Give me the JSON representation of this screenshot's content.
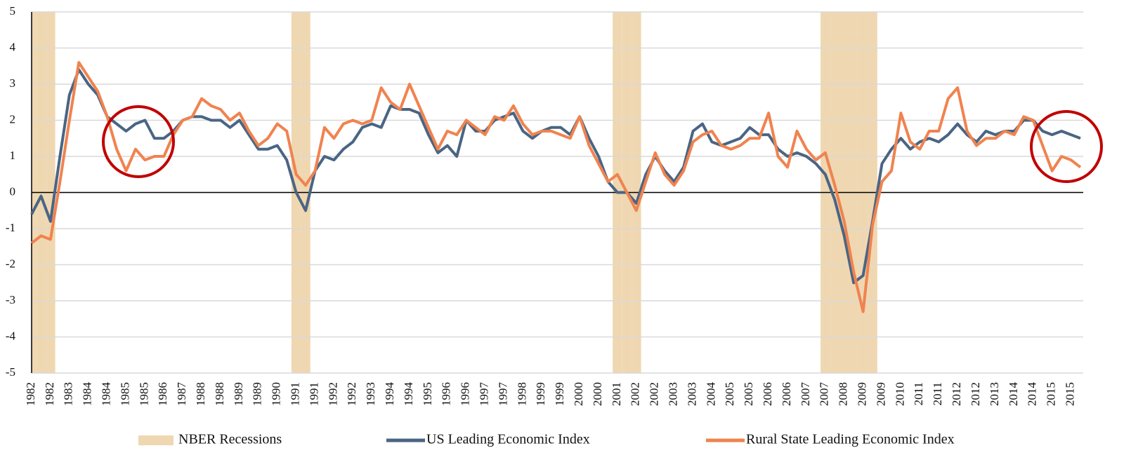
{
  "chart_data": {
    "type": "line",
    "categories": [
      "1982",
      null,
      "1982",
      null,
      "1983",
      null,
      "1984",
      null,
      "1984",
      null,
      "1985",
      null,
      "1985",
      null,
      "1986",
      null,
      "1987",
      null,
      "1988",
      null,
      "1988",
      null,
      "1989",
      null,
      "1989",
      null,
      "1990",
      null,
      "1991",
      null,
      "1991",
      null,
      "1992",
      null,
      "1992",
      null,
      "1993",
      null,
      "1994",
      null,
      "1994",
      null,
      "1995",
      null,
      "1996",
      null,
      "1996",
      null,
      "1997",
      null,
      "1997",
      null,
      "1998",
      null,
      "1999",
      null,
      "1999",
      null,
      "2000",
      null,
      "2000",
      null,
      "2001",
      null,
      "2002",
      null,
      "2002",
      null,
      "2003",
      null,
      "2003",
      null,
      "2004",
      null,
      "2005",
      null,
      "2005",
      null,
      "2006",
      null,
      "2006",
      null,
      "2007",
      null,
      "2007",
      null,
      "2008",
      null,
      "2009",
      null,
      "2009",
      null,
      "2010",
      null,
      "2011",
      null,
      "2011",
      null,
      "2012",
      null,
      "2012",
      null,
      "2013",
      null,
      "2014",
      null,
      "2014",
      null,
      "2015",
      null,
      "2015",
      null
    ],
    "series": [
      {
        "name": "NBER Recessions",
        "type": "bar",
        "color": "#efd7b1",
        "values": [
          1,
          1,
          1,
          0,
          0,
          0,
          0,
          0,
          0,
          0,
          0,
          0,
          0,
          0,
          0,
          0,
          0,
          0,
          0,
          0,
          0,
          0,
          0,
          0,
          0,
          0,
          0,
          0,
          1,
          1,
          0,
          0,
          0,
          0,
          0,
          0,
          0,
          0,
          0,
          0,
          0,
          0,
          0,
          0,
          0,
          0,
          0,
          0,
          0,
          0,
          0,
          0,
          0,
          0,
          0,
          0,
          0,
          0,
          0,
          0,
          0,
          0,
          1,
          1,
          1,
          0,
          0,
          0,
          0,
          0,
          0,
          0,
          0,
          0,
          0,
          0,
          0,
          0,
          0,
          0,
          0,
          0,
          0,
          0,
          1,
          1,
          1,
          1,
          1,
          1,
          0,
          0,
          0,
          0,
          0,
          0,
          0,
          0,
          0,
          0,
          0,
          0,
          0,
          0,
          0,
          0,
          0,
          0,
          0,
          0,
          0,
          0
        ]
      },
      {
        "name": "US Leading Economic Index",
        "type": "line",
        "color": "#4a6584",
        "values": [
          -0.6,
          -0.1,
          -0.8,
          1.0,
          2.7,
          3.4,
          3.0,
          2.7,
          2.1,
          1.9,
          1.7,
          1.9,
          2.0,
          1.5,
          1.5,
          1.7,
          2.0,
          2.1,
          2.1,
          2.0,
          2.0,
          1.8,
          2.0,
          1.6,
          1.2,
          1.2,
          1.3,
          0.9,
          0.0,
          -0.5,
          0.6,
          1.0,
          0.9,
          1.2,
          1.4,
          1.8,
          1.9,
          1.8,
          2.4,
          2.3,
          2.3,
          2.2,
          1.6,
          1.1,
          1.3,
          1.0,
          2.0,
          1.7,
          1.7,
          2.0,
          2.1,
          2.2,
          1.7,
          1.5,
          1.7,
          1.8,
          1.8,
          1.6,
          2.1,
          1.5,
          1.0,
          0.3,
          0.0,
          0.0,
          -0.3,
          0.5,
          1.0,
          0.6,
          0.3,
          0.7,
          1.7,
          1.9,
          1.4,
          1.3,
          1.4,
          1.5,
          1.8,
          1.6,
          1.6,
          1.2,
          1.0,
          1.1,
          1.0,
          0.8,
          0.5,
          -0.2,
          -1.2,
          -2.5,
          -2.3,
          -0.8,
          0.8,
          1.2,
          1.5,
          1.2,
          1.4,
          1.5,
          1.4,
          1.6,
          1.9,
          1.6,
          1.4,
          1.7,
          1.6,
          1.7,
          1.7,
          2.0,
          2.0,
          1.7,
          1.6,
          1.7,
          1.6,
          1.5
        ]
      },
      {
        "name": "Rural State Leading Economic Index",
        "type": "line",
        "color": "#f0834f",
        "values": [
          -1.4,
          -1.2,
          -1.3,
          0.3,
          2.0,
          3.6,
          3.2,
          2.8,
          2.1,
          1.2,
          0.6,
          1.2,
          0.9,
          1.0,
          1.0,
          1.6,
          2.0,
          2.1,
          2.6,
          2.4,
          2.3,
          2.0,
          2.2,
          1.7,
          1.3,
          1.5,
          1.9,
          1.7,
          0.5,
          0.2,
          0.6,
          1.8,
          1.5,
          1.9,
          2.0,
          1.9,
          2.0,
          2.9,
          2.5,
          2.3,
          3.0,
          2.4,
          1.8,
          1.2,
          1.7,
          1.6,
          2.0,
          1.8,
          1.6,
          2.1,
          2.0,
          2.4,
          1.9,
          1.6,
          1.7,
          1.7,
          1.6,
          1.5,
          2.1,
          1.3,
          0.8,
          0.3,
          0.5,
          0.0,
          -0.5,
          0.3,
          1.1,
          0.5,
          0.2,
          0.6,
          1.4,
          1.6,
          1.7,
          1.3,
          1.2,
          1.3,
          1.5,
          1.5,
          2.2,
          1.0,
          0.7,
          1.7,
          1.2,
          0.9,
          1.1,
          0.2,
          -0.8,
          -2.2,
          -3.3,
          -0.9,
          0.3,
          0.6,
          2.2,
          1.4,
          1.2,
          1.7,
          1.7,
          2.6,
          2.9,
          1.7,
          1.3,
          1.5,
          1.5,
          1.7,
          1.6,
          2.1,
          2.0,
          1.3,
          0.6,
          1.0,
          0.9,
          0.7
        ]
      }
    ],
    "ylim": [
      -5,
      5
    ],
    "yticks": [
      -5,
      -4,
      -3,
      -2,
      -1,
      0,
      1,
      2,
      3,
      4,
      5
    ],
    "grid": true,
    "legend": "bottom"
  }
}
